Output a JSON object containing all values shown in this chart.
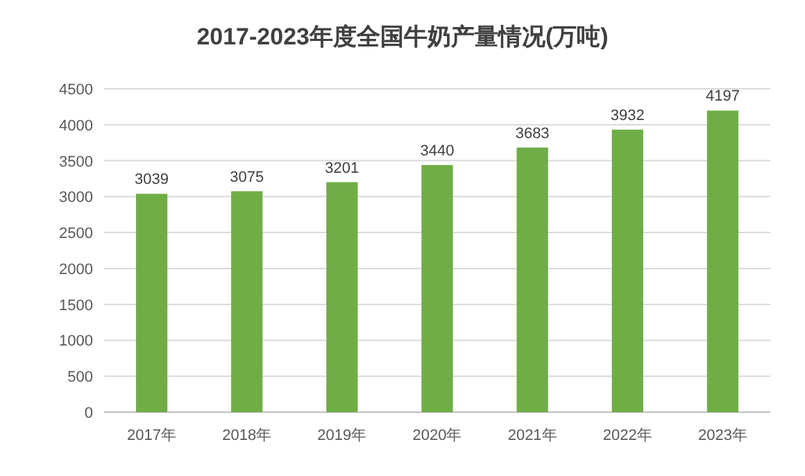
{
  "chart_data": {
    "type": "bar",
    "title": "2017-2023年度全国牛奶产量情况(万吨)",
    "categories": [
      "2017年",
      "2018年",
      "2019年",
      "2020年",
      "2021年",
      "2022年",
      "2023年"
    ],
    "values": [
      3039,
      3075,
      3201,
      3440,
      3683,
      3932,
      4197
    ],
    "color": "#70ad47",
    "ylim": [
      0,
      4500
    ],
    "yticks": [
      0,
      500,
      1000,
      1500,
      2000,
      2500,
      3000,
      3500,
      4000,
      4500
    ],
    "grid": "y",
    "data_labels": true
  }
}
